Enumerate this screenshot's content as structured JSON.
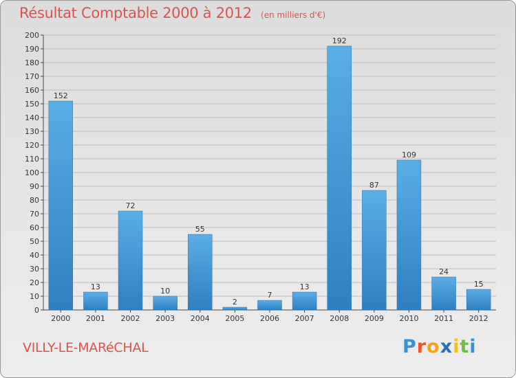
{
  "header": {
    "title": "Résultat Comptable 2000 à 2012",
    "subtitle": "(en milliers d'€)"
  },
  "footer": {
    "commune": "VILLY-LE-MARéCHAL",
    "logo_text": "Proxiti"
  },
  "colors": {
    "title": "#d9534f",
    "bar_light": "#5aaee6",
    "bar_dark": "#2f7fc1",
    "grid": "#bdbdbd",
    "axis": "#444444"
  },
  "chart_data": {
    "type": "bar",
    "title": "Résultat Comptable 2000 à 2012",
    "subtitle": "(en milliers d'€)",
    "xlabel": "",
    "ylabel": "",
    "categories": [
      "2000",
      "2001",
      "2002",
      "2003",
      "2004",
      "2005",
      "2006",
      "2007",
      "2008",
      "2009",
      "2010",
      "2011",
      "2012"
    ],
    "values": [
      152,
      13,
      72,
      10,
      55,
      2,
      7,
      13,
      192,
      87,
      109,
      24,
      15
    ],
    "ylim": [
      0,
      200
    ],
    "yticks": [
      0,
      10,
      20,
      30,
      40,
      50,
      60,
      70,
      80,
      90,
      100,
      110,
      120,
      130,
      140,
      150,
      160,
      170,
      180,
      190,
      200
    ],
    "grid": true,
    "legend": "none"
  }
}
